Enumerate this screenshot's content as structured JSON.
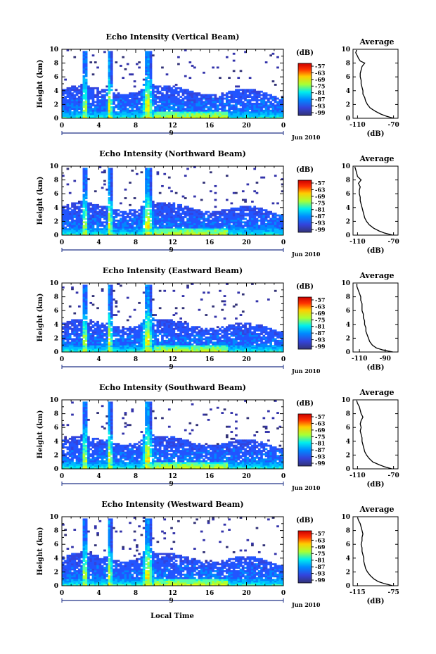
{
  "page": {
    "x_axis_label": "Local Time",
    "date_label": "Jun 2010",
    "day_marker": "9"
  },
  "colorbar": {
    "unit_label": "(dB)",
    "ticks": [
      "-57",
      "-63",
      "-69",
      "-75",
      "-81",
      "-87",
      "-93",
      "-99"
    ],
    "colors": [
      "#cc0000",
      "#ff3300",
      "#ff8800",
      "#ffcc00",
      "#eeff00",
      "#aaff33",
      "#55ffaa",
      "#00eeee",
      "#00bbff",
      "#0088ff",
      "#2255ff",
      "#3344dd",
      "#3333aa",
      "#333377"
    ]
  },
  "chart_data": [
    {
      "type": "heatmap",
      "title": "Echo Intensity (Vertical Beam)",
      "ylabel": "Height (km)",
      "xlabel": "Local Time",
      "xlim": [
        0,
        24
      ],
      "ylim": [
        0,
        10
      ],
      "x_ticks": [
        "0",
        "4",
        "8",
        "12",
        "16",
        "20",
        "0"
      ],
      "y_ticks": [
        "0",
        "2",
        "4",
        "6",
        "8",
        "10"
      ],
      "color_range_db": [
        -99,
        -57
      ],
      "convective_events_hour": [
        2.5,
        5.2,
        9.3
      ],
      "profile": {
        "title": "Average",
        "xlabel": "(dB)",
        "x_ticks": [
          "-110",
          "-70"
        ],
        "xlim": [
          -115,
          -65
        ],
        "height_km": [
          0,
          0.3,
          0.6,
          1,
          1.5,
          2,
          2.5,
          3,
          3.5,
          4,
          4.5,
          5,
          5.5,
          6,
          6.5,
          7,
          7.5,
          8,
          8.3,
          8.7,
          9,
          9.5,
          9.9
        ],
        "avg_db": [
          -70,
          -78,
          -84,
          -90,
          -96,
          -99,
          -101,
          -102,
          -104,
          -104,
          -105,
          -106,
          -106,
          -107,
          -107,
          -106,
          -105,
          -102,
          -107,
          -109,
          -110,
          -112,
          -111
        ]
      }
    },
    {
      "type": "heatmap",
      "title": "Echo Intensity (Northward Beam)",
      "ylabel": "Height (km)",
      "xlabel": "Local Time",
      "xlim": [
        0,
        24
      ],
      "ylim": [
        0,
        10
      ],
      "x_ticks": [
        "0",
        "4",
        "8",
        "12",
        "16",
        "20",
        "0"
      ],
      "y_ticks": [
        "0",
        "2",
        "4",
        "6",
        "8",
        "10"
      ],
      "color_range_db": [
        -99,
        -57
      ],
      "convective_events_hour": [
        2.5,
        5.2,
        9.3
      ],
      "profile": {
        "title": "Average",
        "xlabel": "(dB)",
        "x_ticks": [
          "-110",
          "-70"
        ],
        "xlim": [
          -115,
          -65
        ],
        "height_km": [
          0,
          0.3,
          0.6,
          1,
          1.5,
          2,
          2.5,
          3,
          3.5,
          4,
          4.5,
          5,
          5.5,
          6,
          6.5,
          7,
          7.5,
          8,
          8.5,
          9,
          9.5,
          9.9
        ],
        "avg_db": [
          -71,
          -80,
          -86,
          -92,
          -97,
          -100,
          -102,
          -103,
          -104,
          -105,
          -106,
          -107,
          -107,
          -108,
          -108,
          -107,
          -109,
          -106,
          -110,
          -111,
          -112,
          -113
        ]
      }
    },
    {
      "type": "heatmap",
      "title": "Echo Intensity (Eastward Beam)",
      "ylabel": "Height (km)",
      "xlabel": "Local Time",
      "xlim": [
        0,
        24
      ],
      "ylim": [
        0,
        10
      ],
      "x_ticks": [
        "0",
        "4",
        "8",
        "12",
        "16",
        "20",
        "0"
      ],
      "y_ticks": [
        "0",
        "2",
        "4",
        "6",
        "8",
        "10"
      ],
      "color_range_db": [
        -99,
        -57
      ],
      "convective_events_hour": [
        2.5,
        5.2,
        9.3
      ],
      "profile": {
        "title": "Average",
        "xlabel": "(dB)",
        "x_ticks": [
          "-110",
          "-90"
        ],
        "xlim": [
          -115,
          -80
        ],
        "height_km": [
          0,
          0.3,
          0.6,
          1,
          1.5,
          2,
          2.5,
          3,
          3.5,
          4,
          4.5,
          5,
          5.5,
          6,
          6.5,
          7,
          7.5,
          8,
          8.5,
          9,
          9.5,
          9.9
        ],
        "avg_db": [
          -84,
          -92,
          -97,
          -100,
          -102,
          -103,
          -104,
          -105,
          -105,
          -106,
          -106,
          -107,
          -107,
          -108,
          -108,
          -108,
          -109,
          -109,
          -110,
          -111,
          -112,
          -112
        ]
      }
    },
    {
      "type": "heatmap",
      "title": "Echo Intensity (Southward Beam)",
      "ylabel": "Height (km)",
      "xlabel": "Local Time",
      "xlim": [
        0,
        24
      ],
      "ylim": [
        0,
        10
      ],
      "x_ticks": [
        "0",
        "4",
        "8",
        "12",
        "16",
        "20",
        "0"
      ],
      "y_ticks": [
        "0",
        "2",
        "4",
        "6",
        "8",
        "10"
      ],
      "color_range_db": [
        -99,
        -57
      ],
      "convective_events_hour": [
        2.5,
        5.2,
        9.3
      ],
      "profile": {
        "title": "Average",
        "xlabel": "(dB)",
        "x_ticks": [
          "-110",
          "-70"
        ],
        "xlim": [
          -115,
          -65
        ],
        "height_km": [
          0,
          0.3,
          0.6,
          1,
          1.5,
          2,
          2.5,
          3,
          3.5,
          4,
          4.5,
          5,
          5.5,
          6,
          6.5,
          7,
          7.5,
          8,
          8.5,
          9,
          9.5,
          9.9
        ],
        "avg_db": [
          -72,
          -80,
          -86,
          -93,
          -97,
          -100,
          -102,
          -103,
          -104,
          -105,
          -105,
          -106,
          -107,
          -106,
          -107,
          -106,
          -104,
          -106,
          -107,
          -108,
          -110,
          -111
        ]
      }
    },
    {
      "type": "heatmap",
      "title": "Echo Intensity (Westward Beam)",
      "ylabel": "Height (km)",
      "xlabel": "Local Time",
      "xlim": [
        0,
        24
      ],
      "ylim": [
        0,
        10
      ],
      "x_ticks": [
        "0",
        "4",
        "8",
        "12",
        "16",
        "20",
        "0"
      ],
      "y_ticks": [
        "0",
        "2",
        "4",
        "6",
        "8",
        "10"
      ],
      "color_range_db": [
        -99,
        -57
      ],
      "convective_events_hour": [
        2.5,
        5.2,
        9.3
      ],
      "profile": {
        "title": "Average",
        "xlabel": "(dB)",
        "x_ticks": [
          "-115",
          "-75"
        ],
        "xlim": [
          -120,
          -70
        ],
        "height_km": [
          0,
          0.3,
          0.6,
          1,
          1.5,
          2,
          2.5,
          3,
          3.5,
          4,
          4.5,
          5,
          5.5,
          6,
          6.5,
          7,
          7.5,
          8,
          8.5,
          9,
          9.5,
          9.9
        ],
        "avg_db": [
          -76,
          -85,
          -92,
          -97,
          -101,
          -104,
          -106,
          -107,
          -108,
          -108,
          -109,
          -110,
          -110,
          -111,
          -110,
          -110,
          -109,
          -110,
          -111,
          -112,
          -114,
          -115
        ]
      }
    }
  ]
}
